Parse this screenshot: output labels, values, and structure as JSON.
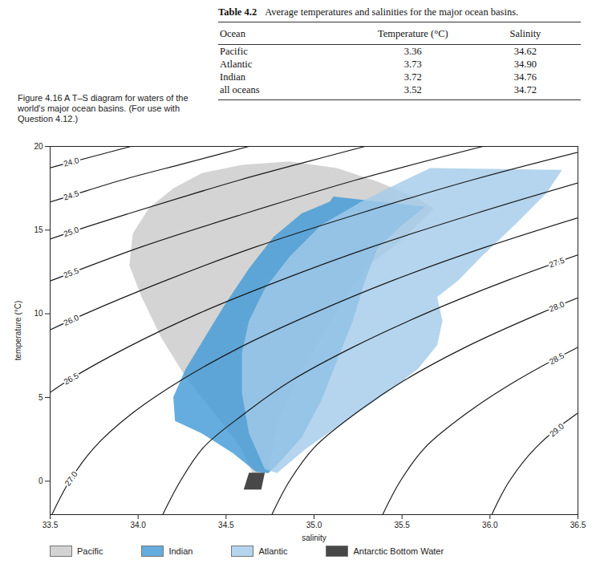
{
  "caption": "Figure 4.16  A T–S diagram for waters of the world's major ocean basins. (For use with Question 4.12.)",
  "table": {
    "label": "Table 4.2",
    "title": "Average temperatures and salinities for the major ocean basins.",
    "columns": [
      "Ocean",
      "Temperature (°C)",
      "Salinity"
    ],
    "rows": [
      [
        "Pacific",
        "3.36",
        "34.62"
      ],
      [
        "Atlantic",
        "3.73",
        "34.90"
      ],
      [
        "Indian",
        "3.72",
        "34.76"
      ],
      [
        "all oceans",
        "3.52",
        "34.72"
      ]
    ]
  },
  "chart_data": {
    "type": "area",
    "x_label": "salinity",
    "y_label": "temperature (°C)",
    "xlim": [
      33.5,
      36.5
    ],
    "xticks": [
      33.5,
      {
        "value": 34,
        "label": "34.0"
      },
      34.5,
      {
        "value": 35,
        "label": "35.0"
      },
      35.5,
      {
        "value": 36,
        "label": "36.0"
      },
      36.5
    ],
    "ylim": [
      -2,
      20
    ],
    "yticks": [
      0,
      5,
      10,
      15,
      20
    ],
    "legend": "bottom",
    "contours": [
      {
        "value": 24,
        "label": "24.0",
        "points": [
          [
            33.42,
            18.5
          ],
          [
            33.6,
            19
          ],
          [
            33.96,
            20
          ]
        ]
      },
      {
        "value": 24.5,
        "label": "24.5",
        "points": [
          [
            33.29,
            16
          ],
          [
            33.6,
            17
          ],
          [
            33.91,
            18
          ],
          [
            34.27,
            19
          ],
          [
            34.63,
            20
          ]
        ]
      },
      {
        "value": 25,
        "label": "25.0",
        "points": [
          [
            33.37,
            14
          ],
          [
            33.65,
            15
          ],
          [
            33.95,
            16
          ],
          [
            34.26,
            17
          ],
          [
            34.58,
            18
          ],
          [
            34.93,
            19
          ],
          [
            35.29,
            20
          ]
        ]
      },
      {
        "value": 25.5,
        "label": "25.5",
        "points": [
          [
            33.26,
            11
          ],
          [
            33.51,
            12
          ],
          [
            34.02,
            14
          ],
          [
            34.61,
            16
          ],
          [
            35.24,
            18
          ],
          [
            35.96,
            20
          ]
        ]
      },
      {
        "value": 26,
        "label": "26.0",
        "points": [
          [
            33.29,
            8
          ],
          [
            33.7,
            10
          ],
          [
            34.16,
            12
          ],
          [
            34.67,
            14
          ],
          [
            35.26,
            16
          ],
          [
            35.9,
            18
          ],
          [
            36.63,
            20
          ]
        ]
      },
      {
        "value": 26.5,
        "label": "26.5",
        "points": [
          [
            33.33,
            4
          ],
          [
            33.6,
            6
          ],
          [
            33.94,
            8
          ],
          [
            34.34,
            10
          ],
          [
            34.81,
            12
          ],
          [
            35.33,
            14
          ],
          [
            35.92,
            16
          ],
          [
            36.56,
            18
          ]
        ]
      },
      {
        "value": 27,
        "label": "27.0",
        "points": [
          [
            33.51,
            -2
          ],
          [
            33.61,
            0
          ],
          [
            33.75,
            2
          ],
          [
            33.96,
            4
          ],
          [
            34.24,
            6
          ],
          [
            34.58,
            8
          ],
          [
            34.99,
            10
          ],
          [
            35.45,
            12
          ],
          [
            35.98,
            14
          ],
          [
            36.58,
            16
          ]
        ]
      },
      {
        "value": 27.5,
        "label": "27.5",
        "points": [
          [
            34.14,
            -2
          ],
          [
            34.24,
            0
          ],
          [
            34.37,
            2
          ],
          [
            34.6,
            4
          ],
          [
            34.87,
            6
          ],
          [
            35.22,
            8
          ],
          [
            35.63,
            10
          ],
          [
            36.1,
            12
          ],
          [
            36.63,
            14
          ]
        ]
      },
      {
        "value": 28,
        "label": "28.0",
        "points": [
          [
            34.76,
            -2
          ],
          [
            34.86,
            0
          ],
          [
            35.0,
            2
          ],
          [
            35.23,
            4
          ],
          [
            35.51,
            6
          ],
          [
            35.86,
            8
          ],
          [
            36.28,
            10
          ],
          [
            36.75,
            12
          ]
        ]
      },
      {
        "value": 28.5,
        "label": "28.5",
        "points": [
          [
            35.39,
            -2
          ],
          [
            35.49,
            0
          ],
          [
            35.63,
            2
          ],
          [
            35.86,
            4
          ],
          [
            36.15,
            6
          ],
          [
            36.5,
            8
          ],
          [
            36.7,
            9
          ]
        ]
      },
      {
        "value": 29,
        "label": "29.0",
        "points": [
          [
            36.01,
            -2
          ],
          [
            36.11,
            0
          ],
          [
            36.26,
            2
          ],
          [
            36.49,
            4
          ],
          [
            36.65,
            5
          ]
        ]
      }
    ],
    "series": [
      {
        "name": "Pacific",
        "color": "#c9c9c9",
        "points": [
          [
            34.65,
            0.48
          ],
          [
            34.59,
            1.91
          ],
          [
            34.45,
            3.83
          ],
          [
            34.27,
            6.22
          ],
          [
            34.13,
            8.61
          ],
          [
            34.02,
            11.0
          ],
          [
            33.95,
            12.9
          ],
          [
            33.97,
            14.8
          ],
          [
            34.06,
            16.3
          ],
          [
            34.2,
            17.5
          ],
          [
            34.36,
            18.4
          ],
          [
            34.59,
            18.9
          ],
          [
            34.86,
            19.1
          ],
          [
            35.13,
            18.7
          ],
          [
            35.36,
            17.9
          ],
          [
            35.59,
            16.9
          ],
          [
            35.68,
            16.3
          ],
          [
            35.5,
            14.4
          ],
          [
            35.31,
            12.9
          ],
          [
            35.18,
            11.0
          ],
          [
            35.04,
            8.6
          ],
          [
            34.9,
            6.2
          ],
          [
            34.79,
            3.3
          ],
          [
            34.74,
            0.5
          ]
        ]
      },
      {
        "name": "Indian",
        "color": "#3f98d6",
        "points": [
          [
            34.67,
            0.57
          ],
          [
            34.54,
            1.67
          ],
          [
            34.36,
            2.87
          ],
          [
            34.21,
            3.59
          ],
          [
            34.2,
            5.02
          ],
          [
            34.27,
            6.7
          ],
          [
            34.38,
            8.61
          ],
          [
            34.49,
            10.5
          ],
          [
            34.63,
            12.7
          ],
          [
            34.77,
            14.6
          ],
          [
            34.93,
            16.0
          ],
          [
            35.09,
            16.7
          ],
          [
            35.11,
            17.0
          ],
          [
            35.36,
            16.7
          ],
          [
            35.63,
            16.4
          ],
          [
            35.5,
            15.3
          ],
          [
            35.36,
            13.9
          ],
          [
            35.29,
            12.0
          ],
          [
            35.22,
            9.57
          ],
          [
            35.13,
            7.18
          ],
          [
            35.04,
            4.78
          ],
          [
            34.93,
            2.63
          ],
          [
            34.79,
            0.96
          ],
          [
            34.74,
            0.48
          ]
        ]
      },
      {
        "name": "Atlantic",
        "color": "#a3cbea",
        "points": [
          [
            34.72,
            0.72
          ],
          [
            34.63,
            2.87
          ],
          [
            34.59,
            5.26
          ],
          [
            34.59,
            7.66
          ],
          [
            34.63,
            9.57
          ],
          [
            34.72,
            11.5
          ],
          [
            34.86,
            13.4
          ],
          [
            35.04,
            15.3
          ],
          [
            35.27,
            16.7
          ],
          [
            35.5,
            17.9
          ],
          [
            35.66,
            18.7
          ],
          [
            36.41,
            18.6
          ],
          [
            36.32,
            17.2
          ],
          [
            36.14,
            15.3
          ],
          [
            35.95,
            13.4
          ],
          [
            35.82,
            12.0
          ],
          [
            35.7,
            11.0
          ],
          [
            35.73,
            9.57
          ],
          [
            35.7,
            8.13
          ],
          [
            35.59,
            6.7
          ],
          [
            35.41,
            5.26
          ],
          [
            35.18,
            3.59
          ],
          [
            34.95,
            1.91
          ],
          [
            34.79,
            0.48
          ]
        ]
      },
      {
        "name": "Antarctic Bottom Water",
        "color": "#1a1a1a",
        "points": [
          [
            34.63,
            0.5
          ],
          [
            34.72,
            0.5
          ],
          [
            34.7,
            -0.5
          ],
          [
            34.6,
            -0.5
          ]
        ]
      }
    ]
  }
}
